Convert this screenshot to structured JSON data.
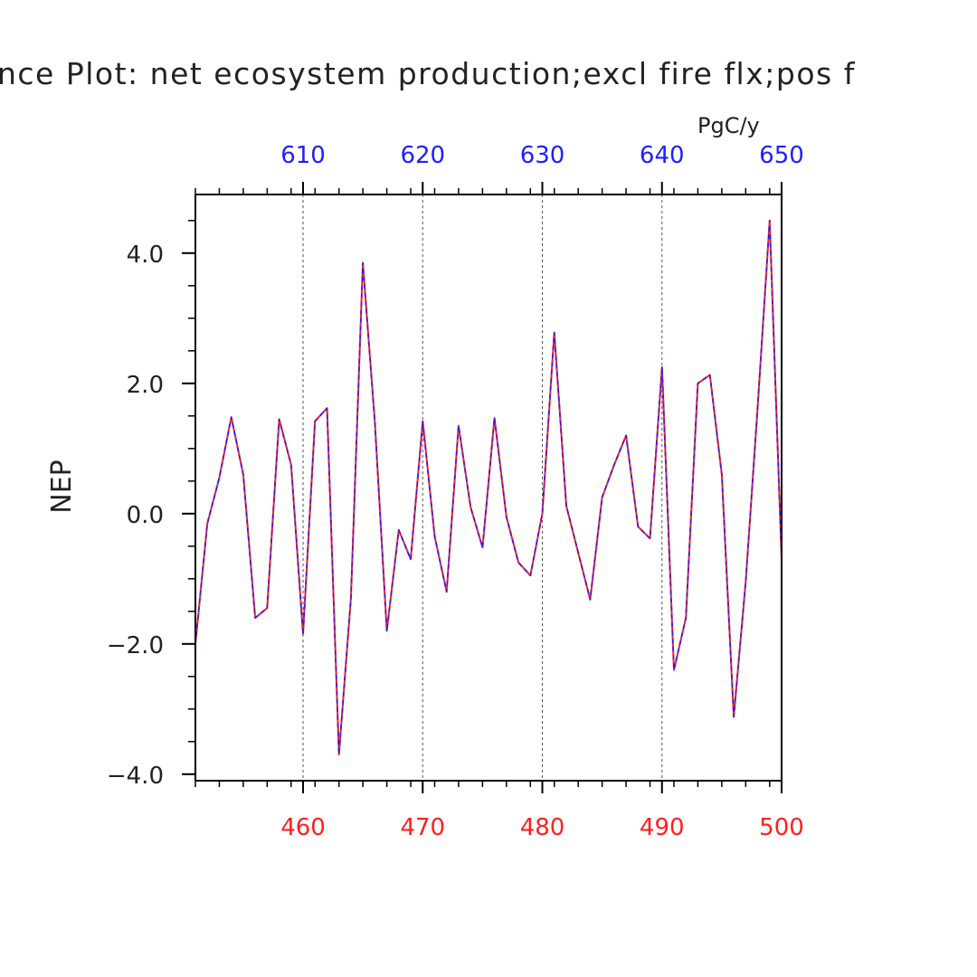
{
  "chart_data": {
    "type": "line",
    "title": "nce Plot: net ecosystem production;excl fire flx;pos f",
    "ylabel": "NEP",
    "units": "PgC/y",
    "ylim": [
      -4.1,
      4.9
    ],
    "yticks": [
      -4.0,
      -2.0,
      0.0,
      2.0,
      4.0
    ],
    "ytick_labels": [
      "−4.0",
      "−2.0",
      "0.0",
      "2.0",
      "4.0"
    ],
    "x_bottom": {
      "range": [
        451,
        500
      ],
      "ticks": [
        460,
        470,
        480,
        490,
        500
      ],
      "tick_labels": [
        "460",
        "470",
        "480",
        "490",
        "500"
      ],
      "color": "#ff2020"
    },
    "x_top": {
      "range": [
        601,
        650
      ],
      "ticks": [
        610,
        620,
        630,
        640,
        650
      ],
      "tick_labels": [
        "610",
        "620",
        "630",
        "640",
        "650"
      ],
      "color": "#2020ff"
    },
    "grid": "vertical dashed at major x ticks",
    "series": [
      {
        "axis": "bottom",
        "color": "#ff2020",
        "style": "solid",
        "x": [
          451,
          452,
          453,
          454,
          455,
          456,
          457,
          458,
          459,
          460,
          461,
          462,
          463,
          464,
          465,
          466,
          467,
          468,
          469,
          470,
          471,
          472,
          473,
          474,
          475,
          476,
          477,
          478,
          479,
          480,
          481,
          482,
          483,
          484,
          485,
          486,
          487,
          488,
          489,
          490,
          491,
          492,
          493,
          494,
          495,
          496,
          497,
          498,
          499,
          500
        ],
        "values": [
          -2.0,
          -0.15,
          0.55,
          1.48,
          0.6,
          -1.6,
          -1.45,
          1.45,
          0.75,
          -1.85,
          1.42,
          1.62,
          -3.7,
          -1.3,
          3.85,
          1.4,
          -1.8,
          -0.25,
          -0.7,
          1.42,
          -0.35,
          -1.2,
          1.35,
          0.1,
          -0.52,
          1.47,
          -0.05,
          -0.75,
          -0.95,
          0.0,
          2.78,
          0.12,
          -0.6,
          -1.32,
          0.25,
          0.75,
          1.2,
          -0.2,
          -0.38,
          2.25,
          -2.4,
          -1.6,
          2.0,
          2.13,
          0.6,
          -3.12,
          -1.05,
          1.65,
          4.5,
          -0.7
        ]
      },
      {
        "axis": "top",
        "color": "#2020ff",
        "style": "dashed",
        "x": [
          601,
          602,
          603,
          604,
          605,
          606,
          607,
          608,
          609,
          610,
          611,
          612,
          613,
          614,
          615,
          616,
          617,
          618,
          619,
          620,
          621,
          622,
          623,
          624,
          625,
          626,
          627,
          628,
          629,
          630,
          631,
          632,
          633,
          634,
          635,
          636,
          637,
          638,
          639,
          640,
          641,
          642,
          643,
          644,
          645,
          646,
          647,
          648,
          649,
          650
        ],
        "values": [
          -2.0,
          -0.15,
          0.55,
          1.48,
          0.6,
          -1.6,
          -1.45,
          1.45,
          0.75,
          -1.85,
          1.42,
          1.62,
          -3.7,
          -1.3,
          3.85,
          1.4,
          -1.8,
          -0.25,
          -0.7,
          1.42,
          -0.35,
          -1.2,
          1.35,
          0.1,
          -0.52,
          1.47,
          -0.05,
          -0.75,
          -0.95,
          0.0,
          2.78,
          0.12,
          -0.6,
          -1.32,
          0.25,
          0.75,
          1.2,
          -0.2,
          -0.38,
          2.25,
          -2.4,
          -1.6,
          2.0,
          2.13,
          0.6,
          -3.12,
          -1.05,
          1.65,
          4.5,
          -0.7
        ]
      }
    ]
  }
}
